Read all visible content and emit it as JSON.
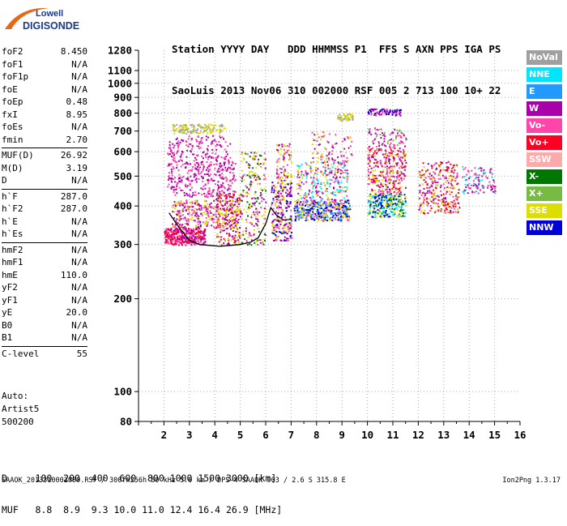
{
  "logo": {
    "line1": "Lowell",
    "line2": "DIGISONDE"
  },
  "header": {
    "row1": "Station YYYY DAY   DDD HHMMSS P1  FFS S AXN PPS IGA PS",
    "row2": "SaoLuis 2013 Nov06 310 002000 RSF 005 2 713 100 10+ 22"
  },
  "params": [
    {
      "group": [
        {
          "label": "foF2",
          "value": "8.450"
        },
        {
          "label": "foF1",
          "value": "N/A"
        },
        {
          "label": "foF1p",
          "value": "N/A"
        },
        {
          "label": "foE",
          "value": "N/A"
        },
        {
          "label": "foEp",
          "value": "0.48"
        },
        {
          "label": "fxI",
          "value": "8.95"
        },
        {
          "label": "foEs",
          "value": "N/A"
        },
        {
          "label": "fmin",
          "value": "2.70"
        }
      ]
    },
    {
      "group": [
        {
          "label": "MUF(D)",
          "value": "26.92"
        },
        {
          "label": "M(D)",
          "value": "3.19"
        },
        {
          "label": "D",
          "value": "N/A"
        }
      ]
    },
    {
      "group": [
        {
          "label": "h`F",
          "value": "287.0"
        },
        {
          "label": "h`F2",
          "value": "287.0"
        },
        {
          "label": "h`E",
          "value": "N/A"
        },
        {
          "label": "h`Es",
          "value": "N/A"
        }
      ]
    },
    {
      "group": [
        {
          "label": "hmF2",
          "value": "N/A"
        },
        {
          "label": "hmF1",
          "value": "N/A"
        },
        {
          "label": "hmE",
          "value": "110.0"
        },
        {
          "label": "yF2",
          "value": "N/A"
        },
        {
          "label": "yF1",
          "value": "N/A"
        },
        {
          "label": "yE",
          "value": "20.0"
        },
        {
          "label": "B0",
          "value": "N/A"
        },
        {
          "label": "B1",
          "value": "N/A"
        }
      ]
    },
    {
      "group": [
        {
          "label": "C-level",
          "value": "55"
        }
      ]
    }
  ],
  "auto": {
    "line1": "Auto:",
    "line2": "Artist5",
    "line3": "500200"
  },
  "legend": [
    {
      "name": "NoVal",
      "color": "#a0a0a0"
    },
    {
      "name": "NNE",
      "color": "#00e5ff"
    },
    {
      "name": "E",
      "color": "#2299ff"
    },
    {
      "name": "W",
      "color": "#aa00aa"
    },
    {
      "name": "Vo-",
      "color": "#ff44aa"
    },
    {
      "name": "Vo+",
      "color": "#ff0022"
    },
    {
      "name": "SSW",
      "color": "#ffaaaa"
    },
    {
      "name": "X-",
      "color": "#007700"
    },
    {
      "name": "X+",
      "color": "#77bb44"
    },
    {
      "name": "SSE",
      "color": "#dddd00"
    },
    {
      "name": "NNW",
      "color": "#0000dd"
    }
  ],
  "dmuf": {
    "d_row": "D     100  200  400  600  800 1000 1500 3000 [km]",
    "muf_row": "MUF   8.8  8.9  9.3 10.0 11.0 12.4 16.4 26.9 [MHz]"
  },
  "footer": "SAAOK_2013310002000.RSF / 300fx256h 50 kHz 5.0 km / DPS-4 SAAOK 903 / 2.6 S 315.8 E",
  "version": "Ion2Png 1.3.17",
  "chart_data": {
    "type": "scatter",
    "title": "",
    "xlabel": "",
    "ylabel": "",
    "xlim": [
      1,
      16
    ],
    "ylim": [
      80,
      1280
    ],
    "yscale": "log",
    "x_ticks": [
      1,
      2,
      3,
      4,
      5,
      6,
      7,
      8,
      9,
      10,
      11,
      12,
      13,
      14,
      15,
      16
    ],
    "y_ticks": [
      80,
      100,
      200,
      300,
      400,
      500,
      600,
      700,
      800,
      900,
      1000,
      1100,
      1280
    ],
    "clusters": [
      {
        "x": [
          2.0,
          3.6
        ],
        "y": [
          300,
          340
        ],
        "colors": [
          "#ff0022",
          "#ff44aa",
          "#aa00aa"
        ],
        "n": 360
      },
      {
        "x": [
          2.3,
          4.9
        ],
        "y": [
          340,
          420
        ],
        "colors": [
          "#dddd00",
          "#aa00aa",
          "#ff44aa"
        ],
        "n": 340
      },
      {
        "x": [
          2.1,
          4.8
        ],
        "y": [
          430,
          560
        ],
        "colors": [
          "#aa00aa",
          "#ff44aa"
        ],
        "n": 320
      },
      {
        "x": [
          2.1,
          4.6
        ],
        "y": [
          560,
          680
        ],
        "colors": [
          "#aa00aa",
          "#ff44aa"
        ],
        "n": 160
      },
      {
        "x": [
          2.3,
          4.4
        ],
        "y": [
          690,
          740
        ],
        "colors": [
          "#dddd00",
          "#a0a0a0"
        ],
        "n": 140
      },
      {
        "x": [
          4.0,
          5.0
        ],
        "y": [
          300,
          440
        ],
        "colors": [
          "#dddd00",
          "#ff0022",
          "#aa00aa"
        ],
        "n": 200
      },
      {
        "x": [
          5.0,
          6.0
        ],
        "y": [
          300,
          600
        ],
        "colors": [
          "#dddd00",
          "#ff44aa",
          "#aa00aa",
          "#007700"
        ],
        "n": 220
      },
      {
        "x": [
          6.2,
          7.0
        ],
        "y": [
          310,
          480
        ],
        "colors": [
          "#ff44aa",
          "#aa00aa",
          "#dddd00",
          "#0000dd"
        ],
        "n": 240
      },
      {
        "x": [
          6.4,
          7.0
        ],
        "y": [
          480,
          640
        ],
        "colors": [
          "#ff44aa",
          "#aa00aa",
          "#dddd00"
        ],
        "n": 90
      },
      {
        "x": [
          7.1,
          9.3
        ],
        "y": [
          360,
          420
        ],
        "colors": [
          "#0000dd",
          "#2299ff",
          "#dddd00",
          "#ff44aa"
        ],
        "n": 420
      },
      {
        "x": [
          7.2,
          9.2
        ],
        "y": [
          420,
          560
        ],
        "colors": [
          "#ff44aa",
          "#aa00aa",
          "#dddd00",
          "#00e5ff"
        ],
        "n": 260
      },
      {
        "x": [
          7.8,
          9.4
        ],
        "y": [
          560,
          700
        ],
        "colors": [
          "#aa00aa",
          "#ff44aa",
          "#dddd00"
        ],
        "n": 80
      },
      {
        "x": [
          8.8,
          9.4
        ],
        "y": [
          760,
          800
        ],
        "colors": [
          "#dddd00",
          "#a0a0a0"
        ],
        "n": 50
      },
      {
        "x": [
          10.0,
          11.5
        ],
        "y": [
          370,
          440
        ],
        "colors": [
          "#00e5ff",
          "#007700",
          "#dddd00",
          "#0000dd"
        ],
        "n": 260
      },
      {
        "x": [
          10.0,
          11.5
        ],
        "y": [
          440,
          620
        ],
        "colors": [
          "#ff44aa",
          "#ff0022",
          "#aa00aa",
          "#dddd00"
        ],
        "n": 320
      },
      {
        "x": [
          10.0,
          11.5
        ],
        "y": [
          620,
          720
        ],
        "colors": [
          "#aa00aa",
          "#ff44aa",
          "#77bb44"
        ],
        "n": 80
      },
      {
        "x": [
          10.0,
          11.3
        ],
        "y": [
          790,
          830
        ],
        "colors": [
          "#0000dd",
          "#aa00aa",
          "#ff44aa"
        ],
        "n": 90
      },
      {
        "x": [
          12.0,
          13.6
        ],
        "y": [
          380,
          560
        ],
        "colors": [
          "#ff44aa",
          "#aa00aa",
          "#ff0022",
          "#dddd00"
        ],
        "n": 300
      },
      {
        "x": [
          13.7,
          15.0
        ],
        "y": [
          440,
          540
        ],
        "colors": [
          "#ff44aa",
          "#aa00aa",
          "#00e5ff"
        ],
        "n": 110
      }
    ],
    "trace": {
      "x": [
        2.2,
        2.6,
        3.0,
        3.4,
        3.8,
        4.2,
        4.6,
        5.0,
        5.4,
        5.7,
        6.0,
        6.2,
        6.4,
        6.7,
        7.0
      ],
      "y": [
        380,
        340,
        310,
        300,
        298,
        296,
        298,
        300,
        305,
        315,
        350,
        395,
        375,
        360,
        362
      ]
    }
  }
}
